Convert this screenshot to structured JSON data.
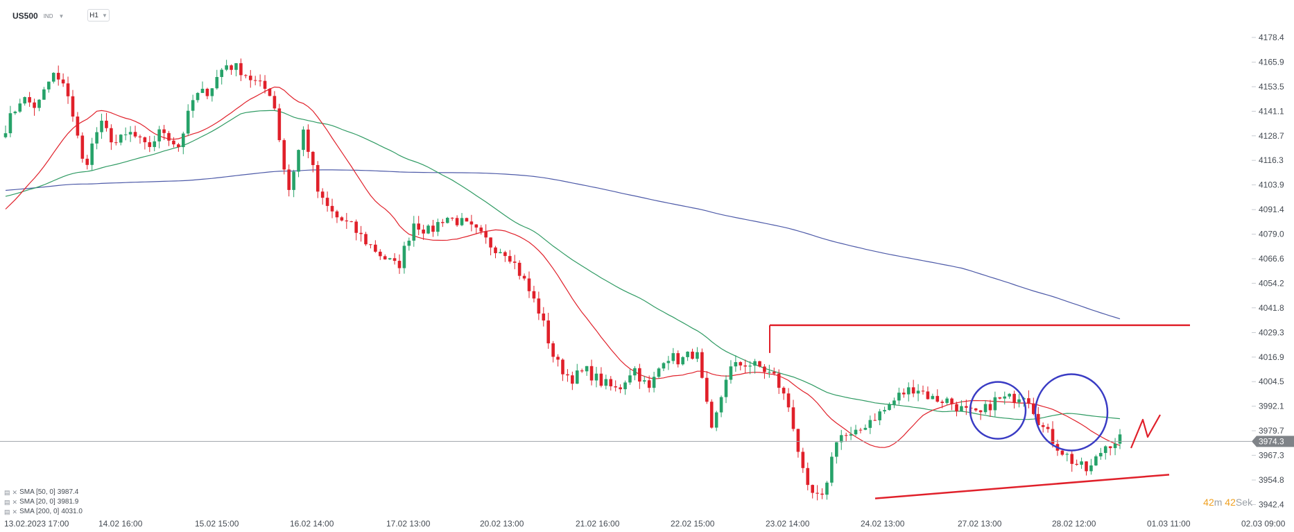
{
  "header": {
    "symbol": "US500",
    "symbol_sub": "IND",
    "timeframe": "H1"
  },
  "legend": [
    {
      "label": "SMA [50, 0]",
      "value": "3987.4"
    },
    {
      "label": "SMA [20, 0]",
      "value": "3981.9"
    },
    {
      "label": "SMA [200, 0]",
      "value": "4031.0"
    }
  ],
  "timer": {
    "minutes": "42",
    "minutes_unit": "m",
    "seconds": "42",
    "seconds_unit": "Sek"
  },
  "colors": {
    "up": "#26a269",
    "down": "#e0202a",
    "sma20": "#e0202a",
    "sma50": "#2e9a62",
    "sma200": "#4d5aa8",
    "annotation_red": "#e0202a",
    "annotation_blue": "#3a3cc4",
    "price_label_bg": "#7f8388"
  },
  "chart_data": {
    "type": "candlestick",
    "y_range": [
      3938.0,
      4187.5
    ],
    "y_ticks": [
      "4178.4",
      "4165.9",
      "4153.5",
      "4141.1",
      "4128.7",
      "4116.3",
      "4103.9",
      "4091.4",
      "4079.0",
      "4066.6",
      "4054.2",
      "4041.8",
      "4029.3",
      "4016.9",
      "4004.5",
      "3992.1",
      "3979.7",
      "3967.3",
      "3954.8",
      "3942.4"
    ],
    "current_price": "3974.3",
    "x_labels": [
      "13.02.2023   17:00",
      "14.02   16:00",
      "15.02   15:00",
      "16.02   14:00",
      "17.02   13:00",
      "20.02   13:00",
      "21.02   16:00",
      "22.02   15:00",
      "23.02   14:00",
      "24.02   13:00",
      "27.02   13:00",
      "28.02   12:00",
      "01.03   11:00",
      "02.03   09:00"
    ],
    "key_closes": [
      4133,
      4148,
      4143,
      4160,
      4150,
      4112,
      4135,
      4125,
      4130,
      4122,
      4132,
      4123,
      4148,
      4152,
      4165,
      4162,
      4155,
      4150,
      4100,
      4132,
      4097,
      4088,
      4083,
      4075,
      4068,
      4062,
      4085,
      4080,
      4088,
      4085,
      4080,
      4073,
      4070,
      4056,
      4040,
      4015,
      4006,
      4010,
      4004,
      4000,
      4012,
      4000,
      4018,
      4015,
      4020,
      3978,
      4010,
      4014,
      4012,
      4007,
      3990,
      3950,
      3944,
      3978,
      3976,
      3985,
      3990,
      3998,
      4002,
      3996,
      3995,
      3990,
      3987,
      3995,
      3996,
      3999,
      3982,
      3972,
      3964,
      3959,
      3972,
      3976
    ],
    "sma20_end": 3981.9,
    "sma50_end": 3987.4,
    "sma200_end": 4031.0,
    "annotations": {
      "resistance_line": {
        "from": [
          "23.02 14:00",
          4033.0
        ],
        "to": [
          "01.03 11:00",
          4033.0
        ]
      },
      "support_line": {
        "from": [
          "24.02 13:00",
          3945.5
        ],
        "to": [
          "01.03 11:00",
          3957.5
        ]
      },
      "circles": [
        [
          "27.02 13:00",
          3990
        ],
        [
          "28.02 12:00",
          3989
        ]
      ],
      "projected_zigzag": [
        "01.03",
        "3975",
        "3997"
      ]
    }
  }
}
